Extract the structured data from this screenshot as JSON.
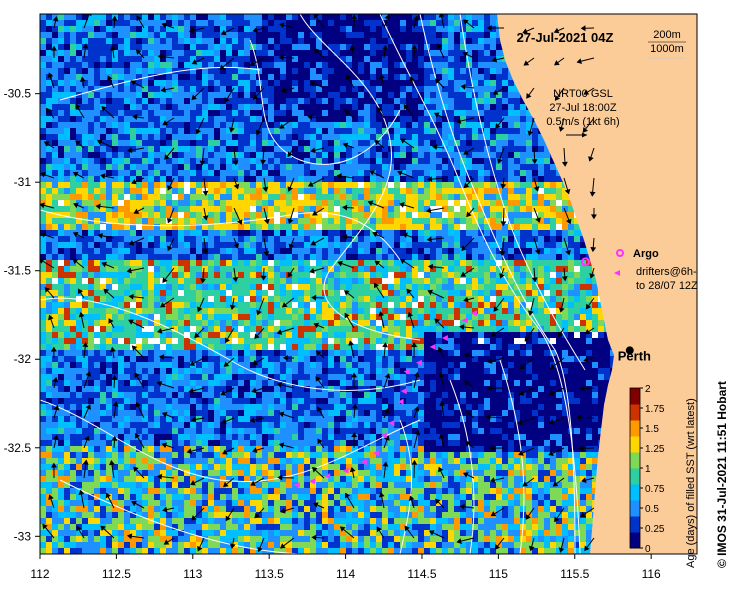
{
  "map": {
    "title": "27-Jul-2021 04Z",
    "contour_legend": [
      "200m",
      "1000m"
    ],
    "current_info": [
      "NRT00 GSL",
      "27-Jul 18:00Z",
      "0.5m/s (1kt 6h)"
    ],
    "argo_label": "Argo",
    "drifters_label": [
      "drifters@6h-",
      "to 28/07 12Z"
    ],
    "city_label": "Perth",
    "credit": "© IMOS 31-Jul-2021 11:51 Hobart"
  },
  "axes": {
    "x_ticks": [
      "112",
      "112.5",
      "113",
      "113.5",
      "114",
      "114.5",
      "115",
      "115.5",
      "116"
    ],
    "x_values": [
      112,
      112.5,
      113,
      113.5,
      114,
      114.5,
      115,
      115.5,
      116
    ],
    "y_ticks": [
      "-30.5",
      "-31",
      "-31.5",
      "-32",
      "-32.5",
      "-33"
    ],
    "y_values": [
      -30.5,
      -31,
      -31.5,
      -32,
      -32.5,
      -33
    ],
    "lon_range": [
      112,
      116.3
    ],
    "lat_range": [
      -33.1,
      -30.05
    ]
  },
  "colorbar": {
    "label": "Age (days) of filled SST (wrt latest)",
    "ticks": [
      "0",
      "0.25",
      "0.5",
      "0.75",
      "1",
      "1.25",
      "1.5",
      "1.75",
      "2"
    ],
    "range": [
      0,
      2
    ],
    "colors": [
      "#000080",
      "#0033cc",
      "#1e90ff",
      "#00bfff",
      "#2ecfa0",
      "#7ed957",
      "#ffd700",
      "#ff9900",
      "#cc3300",
      "#800000"
    ]
  },
  "colors": {
    "land": "#fccc98",
    "missing": "#ffffff",
    "argo": "#ff33ff",
    "drifter": "#ff33ff",
    "vector": "#000000",
    "contour": "#ffffff"
  },
  "markers": {
    "perth": {
      "lon": 115.86,
      "lat": -31.95
    },
    "argo": {
      "lon": 115.57,
      "lat": -31.45
    },
    "drifters": [
      {
        "lon": 114.84,
        "lat": -31.74
      },
      {
        "lon": 114.78,
        "lat": -31.78
      },
      {
        "lon": 114.65,
        "lat": -31.88
      },
      {
        "lon": 114.57,
        "lat": -31.93
      },
      {
        "lon": 114.48,
        "lat": -32.02
      },
      {
        "lon": 114.4,
        "lat": -32.07
      },
      {
        "lon": 114.38,
        "lat": -32.18
      },
      {
        "lon": 114.36,
        "lat": -32.24
      },
      {
        "lon": 114.3,
        "lat": -32.36
      },
      {
        "lon": 114.25,
        "lat": -32.43
      },
      {
        "lon": 114.2,
        "lat": -32.53
      },
      {
        "lon": 114.12,
        "lat": -32.58
      },
      {
        "lon": 114.0,
        "lat": -32.63
      },
      {
        "lon": 113.88,
        "lat": -32.66
      },
      {
        "lon": 113.78,
        "lat": -32.69
      },
      {
        "lon": 113.68,
        "lat": -32.71
      }
    ]
  }
}
